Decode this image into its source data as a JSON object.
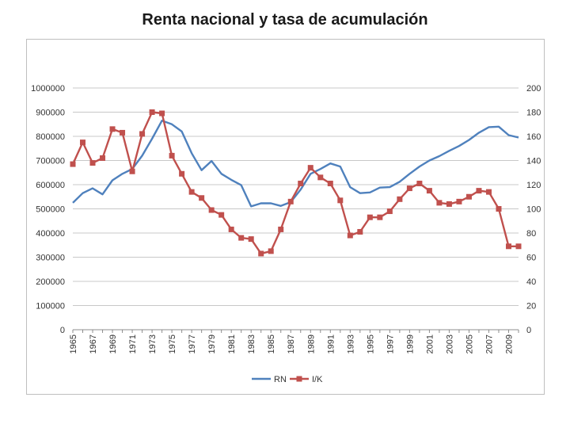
{
  "chart_data": {
    "type": "line",
    "title": "Renta nacional y tasa de acumulación",
    "xlabel": "",
    "ylabel": "",
    "y_left_lim": [
      0,
      1000000
    ],
    "y_left_ticks": [
      0,
      100000,
      200000,
      300000,
      400000,
      500000,
      600000,
      700000,
      800000,
      900000,
      1000000
    ],
    "y_right_lim": [
      0,
      200
    ],
    "y_right_ticks": [
      0,
      20,
      40,
      60,
      80,
      100,
      120,
      140,
      160,
      180,
      200
    ],
    "x": [
      1965,
      1966,
      1967,
      1968,
      1969,
      1970,
      1971,
      1972,
      1973,
      1974,
      1975,
      1976,
      1977,
      1978,
      1979,
      1980,
      1981,
      1982,
      1983,
      1984,
      1985,
      1986,
      1987,
      1988,
      1989,
      1990,
      1991,
      1992,
      1993,
      1994,
      1995,
      1996,
      1997,
      1998,
      1999,
      2000,
      2001,
      2002,
      2003,
      2004,
      2005,
      2006,
      2007,
      2008,
      2009,
      2010
    ],
    "x_tick_labels": [
      "1965",
      "1967",
      "1969",
      "1971",
      "1973",
      "1975",
      "1977",
      "1979",
      "1981",
      "1983",
      "1985",
      "1987",
      "1989",
      "1991",
      "1993",
      "1995",
      "1997",
      "1999",
      "2001",
      "2003",
      "2005",
      "2007",
      "2009"
    ],
    "legend_position": "bottom",
    "series": [
      {
        "name": "RN",
        "axis": "left",
        "color": "#4f81bd",
        "marker": "none",
        "values": [
          525000,
          565000,
          585000,
          560000,
          618000,
          645000,
          665000,
          720000,
          790000,
          865000,
          850000,
          820000,
          730000,
          660000,
          698000,
          645000,
          620000,
          598000,
          510000,
          523000,
          523000,
          512000,
          528000,
          580000,
          645000,
          665000,
          688000,
          675000,
          590000,
          565000,
          568000,
          588000,
          590000,
          612000,
          645000,
          675000,
          700000,
          718000,
          740000,
          760000,
          785000,
          815000,
          838000,
          840000,
          805000,
          795000
        ]
      },
      {
        "name": "I/K",
        "axis": "right",
        "color": "#c0504d",
        "marker": "square",
        "values": [
          137,
          155,
          138,
          142,
          166,
          163,
          131,
          162,
          180,
          179,
          144,
          129,
          114,
          109,
          99,
          95,
          83,
          76,
          75,
          63,
          65,
          83,
          106,
          121,
          134,
          126,
          121,
          107,
          78,
          81,
          93,
          93,
          98,
          108,
          117,
          121,
          115,
          105,
          104,
          106,
          110,
          115,
          114,
          100,
          69,
          69
        ]
      }
    ]
  }
}
